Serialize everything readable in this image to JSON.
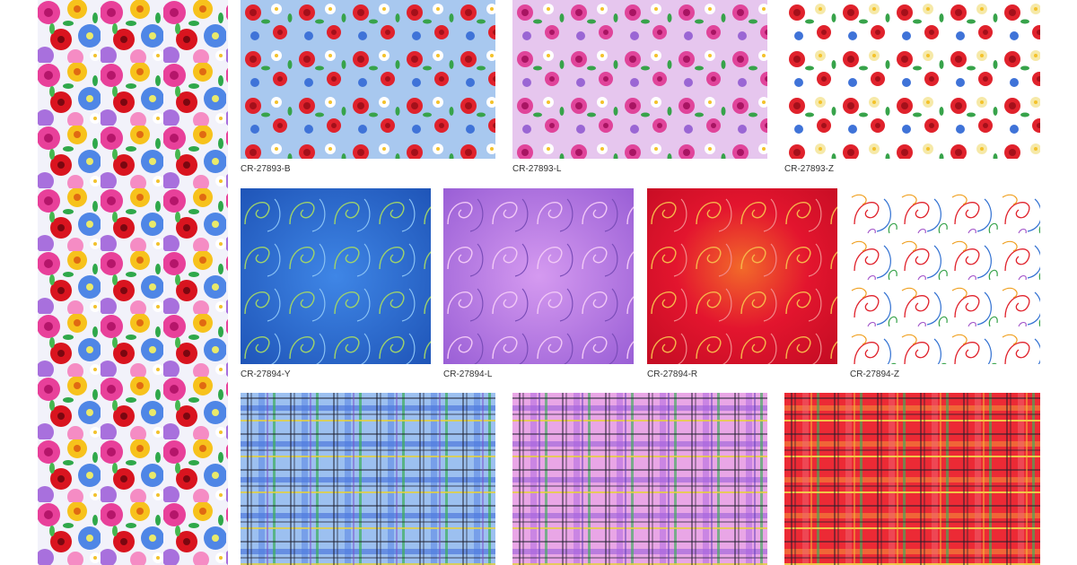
{
  "swatches": {
    "floral_tall": {
      "icon": "multicolor-floral-pattern"
    },
    "row1": [
      {
        "code": "CR-27893-B",
        "bg": "#a8c8ef",
        "icon": "rose-lily-floral-pattern"
      },
      {
        "code": "CR-27893-L",
        "bg": "#e6c6ee",
        "icon": "rose-lily-floral-pattern"
      },
      {
        "code": "CR-27893-Z",
        "bg": "#ffffff",
        "icon": "rose-lily-floral-pattern"
      }
    ],
    "row2": [
      {
        "code": "CR-27894-Y",
        "bg": "#2f6fd1",
        "icon": "scroll-swirl-pattern"
      },
      {
        "code": "CR-27894-L",
        "bg": "#b57be0",
        "icon": "scroll-swirl-pattern"
      },
      {
        "code": "CR-27894-R",
        "bg": "#e3152e",
        "icon": "scroll-swirl-pattern"
      },
      {
        "code": "CR-27894-Z",
        "bg": "#ffffff",
        "icon": "scroll-swirl-pattern"
      }
    ],
    "row3": [
      {
        "bg": "#9cc0f0",
        "icon": "plaid-pattern"
      },
      {
        "bg": "#e9a6e6",
        "icon": "plaid-pattern"
      },
      {
        "bg": "#ec2a35",
        "icon": "plaid-pattern"
      }
    ]
  }
}
